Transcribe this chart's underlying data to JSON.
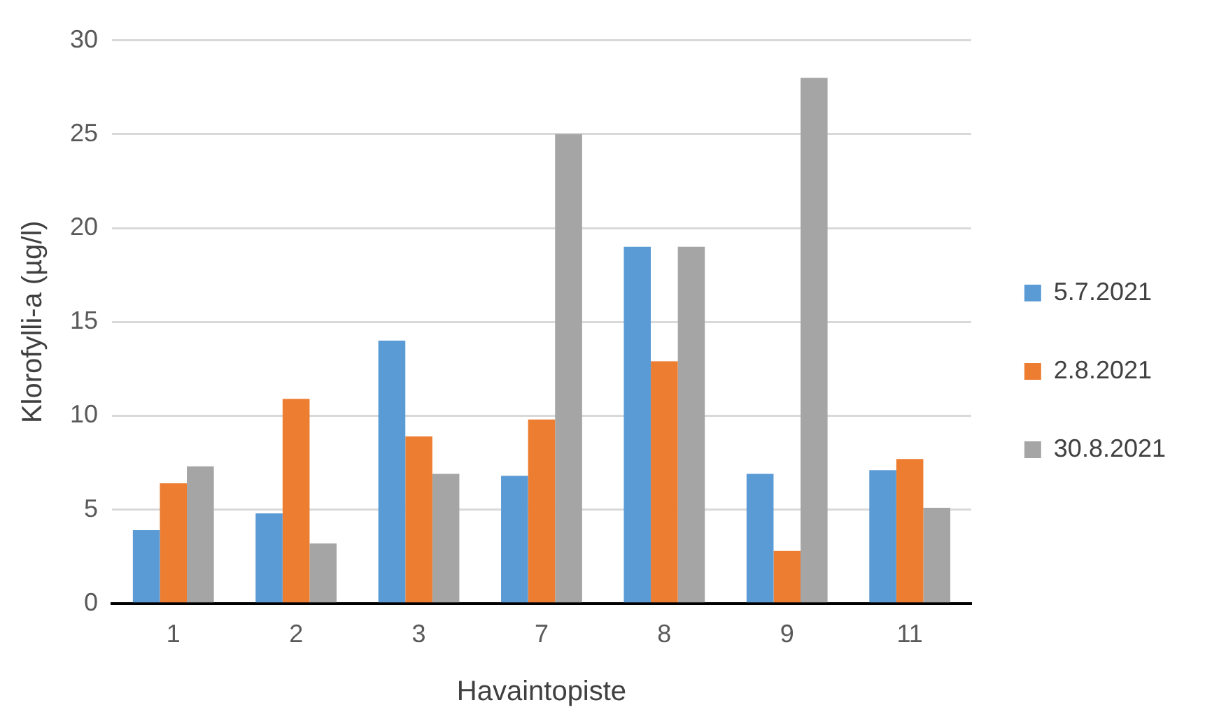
{
  "chart_data": {
    "type": "bar",
    "xlabel": "Havaintopiste",
    "ylabel": "Klorofylli-a (µg/l)",
    "categories": [
      "1",
      "2",
      "3",
      "7",
      "8",
      "9",
      "11"
    ],
    "series": [
      {
        "name": "5.7.2021",
        "color": "#5b9bd5",
        "values": [
          3.9,
          4.8,
          14,
          6.8,
          19,
          6.9,
          7.1
        ]
      },
      {
        "name": "2.8.2021",
        "color": "#ed7d31",
        "values": [
          6.4,
          10.9,
          8.9,
          9.8,
          12.9,
          2.8,
          7.7
        ]
      },
      {
        "name": "30.8.2021",
        "color": "#a5a5a5",
        "values": [
          7.3,
          3.2,
          6.9,
          25,
          19,
          28,
          5.1
        ]
      }
    ],
    "ylim": [
      0,
      30
    ],
    "yticks": [
      0,
      5,
      10,
      15,
      20,
      25,
      30
    ],
    "grid": "y",
    "legend": "right"
  }
}
